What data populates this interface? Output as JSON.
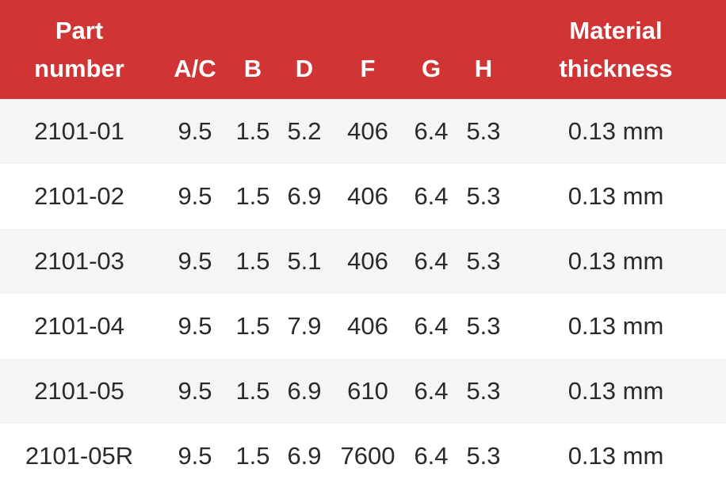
{
  "header": {
    "part_line1": "Part",
    "part_line2": "number",
    "ac": "A/C",
    "b": "B",
    "d": "D",
    "f": "F",
    "g": "G",
    "h": "H",
    "material_line1": "Material",
    "material_line2": "thickness"
  },
  "colors": {
    "header_bg": "#d03434",
    "header_text": "#ffffff",
    "row_alt_bg": "#f5f5f5",
    "row_bg": "#ffffff",
    "cell_text": "#2a2a2a"
  },
  "rows": [
    {
      "part": "2101-01",
      "ac": "9.5",
      "b": "1.5",
      "d": "5.2",
      "f": "406",
      "g": "6.4",
      "h": "5.3",
      "thickness": "0.13 mm"
    },
    {
      "part": "2101-02",
      "ac": "9.5",
      "b": "1.5",
      "d": "6.9",
      "f": "406",
      "g": "6.4",
      "h": "5.3",
      "thickness": "0.13 mm"
    },
    {
      "part": "2101-03",
      "ac": "9.5",
      "b": "1.5",
      "d": "5.1",
      "f": "406",
      "g": "6.4",
      "h": "5.3",
      "thickness": "0.13 mm"
    },
    {
      "part": "2101-04",
      "ac": "9.5",
      "b": "1.5",
      "d": "7.9",
      "f": "406",
      "g": "6.4",
      "h": "5.3",
      "thickness": "0.13 mm"
    },
    {
      "part": "2101-05",
      "ac": "9.5",
      "b": "1.5",
      "d": "6.9",
      "f": "610",
      "g": "6.4",
      "h": "5.3",
      "thickness": "0.13 mm"
    },
    {
      "part": "2101-05R",
      "ac": "9.5",
      "b": "1.5",
      "d": "6.9",
      "f": "7600",
      "g": "6.4",
      "h": "5.3",
      "thickness": "0.13 mm"
    }
  ]
}
